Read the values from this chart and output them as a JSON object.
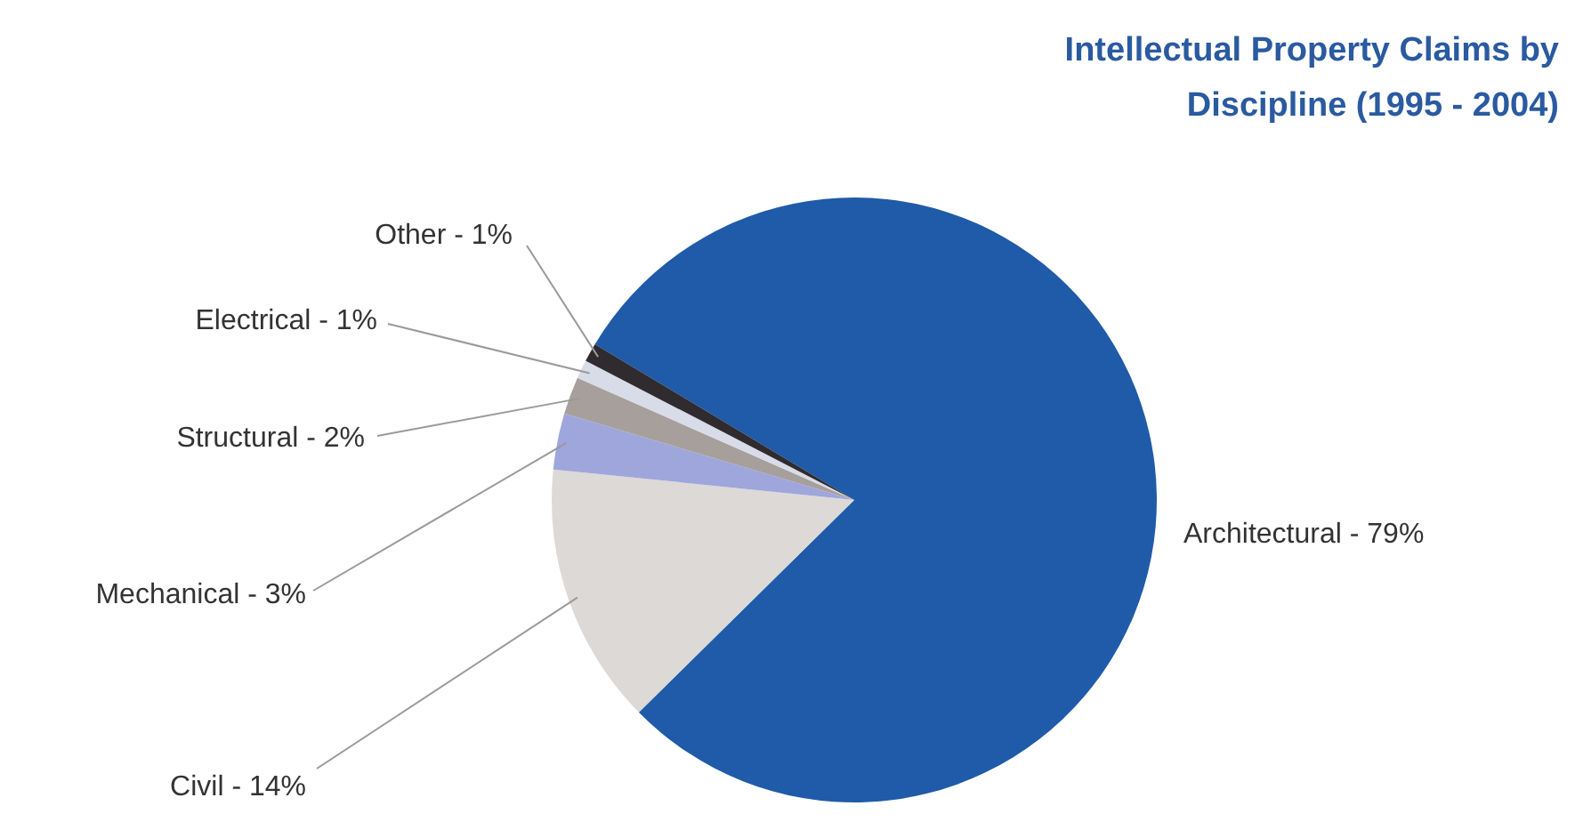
{
  "chart_data": {
    "type": "pie",
    "title": "Intellectual Property Claims by Discipline (1995 - 2004)",
    "categories": [
      "Architectural",
      "Civil",
      "Mechanical",
      "Structural",
      "Electrical",
      "Other"
    ],
    "values": [
      79,
      14,
      3,
      2,
      1,
      1
    ],
    "colors": [
      "#1f5ba8",
      "#dcd9d6",
      "#9ea6dc",
      "#a79f9b",
      "#d8dbe8",
      "#2f2b2e"
    ],
    "value_labels": [
      "79%",
      "14%",
      "3%",
      "2%",
      "1%",
      "1%"
    ]
  }
}
